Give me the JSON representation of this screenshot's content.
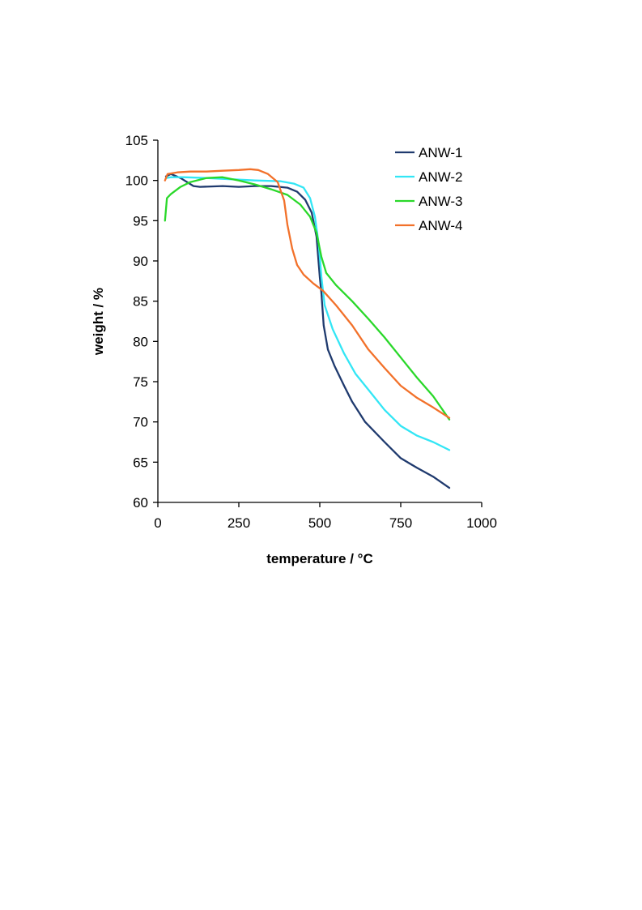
{
  "chart_data": {
    "type": "line",
    "title": "",
    "xlabel": "temperature / °C",
    "ylabel": "weight / %",
    "xlim": [
      0,
      1000
    ],
    "ylim": [
      60,
      105
    ],
    "xticks": [
      "0",
      "250",
      "500",
      "750",
      "1000"
    ],
    "yticks": [
      "60",
      "65",
      "70",
      "75",
      "80",
      "85",
      "90",
      "95",
      "100",
      "105"
    ],
    "grid": false,
    "legend_position": "top-right",
    "series": [
      {
        "name": "ANW-1",
        "color": "#1f3a6e",
        "points": [
          [
            25,
            100.5
          ],
          [
            40,
            100.8
          ],
          [
            70,
            100.3
          ],
          [
            110,
            99.3
          ],
          [
            130,
            99.2
          ],
          [
            200,
            99.3
          ],
          [
            250,
            99.2
          ],
          [
            300,
            99.3
          ],
          [
            350,
            99.3
          ],
          [
            400,
            99.1
          ],
          [
            430,
            98.6
          ],
          [
            455,
            97.6
          ],
          [
            475,
            96.0
          ],
          [
            490,
            93.0
          ],
          [
            500,
            88.0
          ],
          [
            505,
            86.0
          ],
          [
            512,
            82.0
          ],
          [
            525,
            79.0
          ],
          [
            545,
            77.0
          ],
          [
            575,
            74.5
          ],
          [
            600,
            72.5
          ],
          [
            640,
            70.0
          ],
          [
            700,
            67.5
          ],
          [
            750,
            65.5
          ],
          [
            800,
            64.3
          ],
          [
            850,
            63.2
          ],
          [
            900,
            61.8
          ]
        ]
      },
      {
        "name": "ANW-2",
        "color": "#33e6f5",
        "points": [
          [
            25,
            100.3
          ],
          [
            40,
            100.4
          ],
          [
            80,
            100.4
          ],
          [
            150,
            100.3
          ],
          [
            250,
            100.1
          ],
          [
            300,
            100.0
          ],
          [
            380,
            99.9
          ],
          [
            420,
            99.6
          ],
          [
            450,
            99.1
          ],
          [
            470,
            97.8
          ],
          [
            485,
            95.5
          ],
          [
            497,
            92.0
          ],
          [
            505,
            88.0
          ],
          [
            515,
            84.5
          ],
          [
            540,
            81.5
          ],
          [
            575,
            78.5
          ],
          [
            610,
            76.0
          ],
          [
            650,
            74.0
          ],
          [
            700,
            71.5
          ],
          [
            750,
            69.5
          ],
          [
            800,
            68.3
          ],
          [
            850,
            67.5
          ],
          [
            900,
            66.5
          ]
        ]
      },
      {
        "name": "ANW-3",
        "color": "#2ad82a",
        "points": [
          [
            22,
            95.0
          ],
          [
            28,
            97.8
          ],
          [
            40,
            98.3
          ],
          [
            70,
            99.2
          ],
          [
            100,
            99.8
          ],
          [
            150,
            100.3
          ],
          [
            200,
            100.4
          ],
          [
            250,
            100.0
          ],
          [
            300,
            99.5
          ],
          [
            350,
            98.9
          ],
          [
            400,
            98.2
          ],
          [
            440,
            97.0
          ],
          [
            470,
            95.5
          ],
          [
            490,
            93.5
          ],
          [
            505,
            90.5
          ],
          [
            520,
            88.5
          ],
          [
            550,
            87.0
          ],
          [
            600,
            85.0
          ],
          [
            650,
            82.8
          ],
          [
            700,
            80.5
          ],
          [
            750,
            78.0
          ],
          [
            800,
            75.5
          ],
          [
            850,
            73.2
          ],
          [
            900,
            70.3
          ]
        ]
      },
      {
        "name": "ANW-4",
        "color": "#f2712a",
        "points": [
          [
            22,
            100.0
          ],
          [
            30,
            100.8
          ],
          [
            60,
            101.0
          ],
          [
            100,
            101.1
          ],
          [
            150,
            101.1
          ],
          [
            200,
            101.2
          ],
          [
            250,
            101.3
          ],
          [
            285,
            101.4
          ],
          [
            310,
            101.3
          ],
          [
            340,
            100.8
          ],
          [
            370,
            99.8
          ],
          [
            390,
            97.5
          ],
          [
            400,
            94.5
          ],
          [
            415,
            91.5
          ],
          [
            430,
            89.5
          ],
          [
            450,
            88.3
          ],
          [
            480,
            87.2
          ],
          [
            510,
            86.3
          ],
          [
            550,
            84.5
          ],
          [
            600,
            82.0
          ],
          [
            650,
            79.0
          ],
          [
            700,
            76.7
          ],
          [
            750,
            74.5
          ],
          [
            800,
            73.0
          ],
          [
            850,
            71.8
          ],
          [
            900,
            70.5
          ]
        ]
      }
    ]
  }
}
